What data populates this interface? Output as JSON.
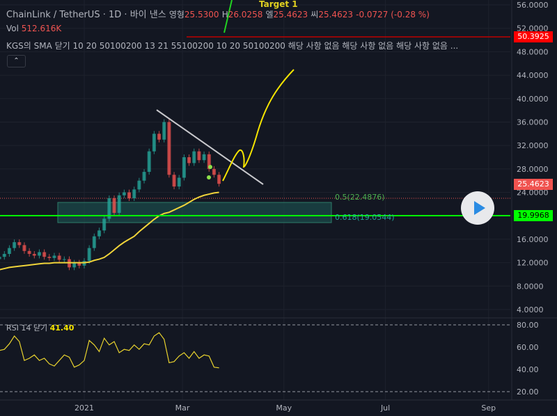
{
  "header": {
    "symbol": "ChainLink / TetherUS",
    "sep1": "·",
    "interval": "1D",
    "sep2": "·",
    "exchange": "바이 낸스",
    "open_label": "영형",
    "open": "25.5300",
    "high_label": "H",
    "high": "26.0258",
    "low_label": "엘",
    "low": "25.4623",
    "close_label": "씨",
    "close": "25.4623",
    "change": "-0.0727 (-0.28 %)"
  },
  "volume": {
    "label": "Vol",
    "value": "512.616K"
  },
  "indicator": {
    "text": "KGS의 SMA 닫기 10 20 50100200 13 21 55100200 10 20 50100200  해당 사항 없음  해당 사항 없음  해당 사항 없음  ..."
  },
  "collapse_icon": "chevron-up-icon",
  "collapse_glyph": "⌃",
  "drawings": {
    "target_label": "Target 1",
    "fib_05": "0.5(22.4876)",
    "fib_0618": "0.618(19.0544)"
  },
  "price_tags": {
    "resistance": "50.3925",
    "current": "25.4623",
    "support": "19.9968"
  },
  "colors": {
    "up": "#26a69a",
    "down": "#ef5350",
    "sma": "#f0d43a",
    "resistance": "#ff0000",
    "support": "#00ff00",
    "rsi": "#e8d22e",
    "background": "#131722"
  },
  "rsi_legend": {
    "label": "RSI 14 닫기",
    "value": "41.40"
  },
  "chart_data": {
    "type": "candlestick",
    "scale": "linear",
    "price_axis": {
      "ticks": [
        "56.0000",
        "52.0000",
        "48.0000",
        "44.0000",
        "40.0000",
        "36.0000",
        "32.0000",
        "28.0000",
        "24.0000",
        "16.0000",
        "12.0000",
        "8.0000",
        "4.0000"
      ],
      "range": [
        3,
        57
      ]
    },
    "time_axis": {
      "ticks": [
        {
          "label": "2021",
          "date": "2021-01-01"
        },
        {
          "label": "Mar",
          "date": "2021-03-01"
        },
        {
          "label": "May",
          "date": "2021-05-01"
        },
        {
          "label": "Jul",
          "date": "2021-07-01"
        },
        {
          "label": "Sep",
          "date": "2021-09-01"
        }
      ]
    },
    "dates": [
      "2020-11-11",
      "2020-11-14",
      "2020-11-17",
      "2020-11-20",
      "2020-11-23",
      "2020-11-26",
      "2020-11-29",
      "2020-12-02",
      "2020-12-05",
      "2020-12-08",
      "2020-12-11",
      "2020-12-14",
      "2020-12-17",
      "2020-12-20",
      "2020-12-23",
      "2020-12-26",
      "2020-12-29",
      "2021-01-01",
      "2021-01-04",
      "2021-01-07",
      "2021-01-10",
      "2021-01-13",
      "2021-01-16",
      "2021-01-19",
      "2021-01-22",
      "2021-01-25",
      "2021-01-28",
      "2021-01-31",
      "2021-02-03",
      "2021-02-06",
      "2021-02-09",
      "2021-02-12",
      "2021-02-15",
      "2021-02-18",
      "2021-02-21",
      "2021-02-24",
      "2021-02-27",
      "2021-03-02",
      "2021-03-05",
      "2021-03-08",
      "2021-03-11",
      "2021-03-14",
      "2021-03-17",
      "2021-03-20",
      "2021-03-23"
    ],
    "close": [
      13.0,
      13.5,
      14.5,
      15.5,
      15.0,
      14.0,
      13.5,
      13.2,
      13.8,
      13.0,
      12.8,
      13.2,
      12.5,
      12.6,
      11.2,
      12.0,
      11.5,
      12.3,
      14.5,
      16.5,
      17.5,
      19.5,
      23.0,
      20.5,
      23.5,
      24.0,
      23.0,
      24.5,
      26.0,
      27.5,
      31.0,
      34.0,
      33.0,
      36.0,
      27.0,
      25.0,
      26.5,
      30.0,
      29.0,
      31.0,
      29.5,
      30.5,
      28.0,
      27.0,
      25.4623
    ],
    "sma": [
      10.8,
      11.0,
      11.2,
      11.3,
      11.4,
      11.5,
      11.6,
      11.7,
      11.8,
      11.9,
      11.9,
      12.0,
      12.0,
      12.0,
      12.0,
      12.0,
      12.0,
      12.0,
      12.1,
      12.4,
      12.6,
      12.9,
      13.5,
      14.2,
      14.9,
      15.5,
      16.0,
      16.5,
      17.3,
      18.0,
      18.7,
      19.4,
      20.0,
      20.4,
      20.6,
      21.0,
      21.4,
      21.8,
      22.3,
      22.8,
      23.2,
      23.5,
      23.7,
      23.9,
      24.0
    ],
    "rsi": {
      "ticks": [
        "80.00",
        "60.00",
        "40.00",
        "20.00"
      ],
      "bands": [
        80,
        20
      ],
      "values": [
        57,
        58,
        63,
        70,
        65,
        48,
        50,
        53,
        48,
        50,
        45,
        43,
        48,
        53,
        51,
        42,
        44,
        48,
        66,
        62,
        56,
        68,
        62,
        65,
        55,
        58,
        57,
        62,
        58,
        63,
        62,
        70,
        73,
        67,
        46,
        47,
        52,
        55,
        50,
        56,
        50,
        53,
        52,
        42,
        41.4
      ]
    },
    "levels": {
      "resistance": 50.3925,
      "current": 25.4623,
      "support": 19.9968,
      "fib_05": 22.4876,
      "fib_0618": 19.0544
    }
  }
}
